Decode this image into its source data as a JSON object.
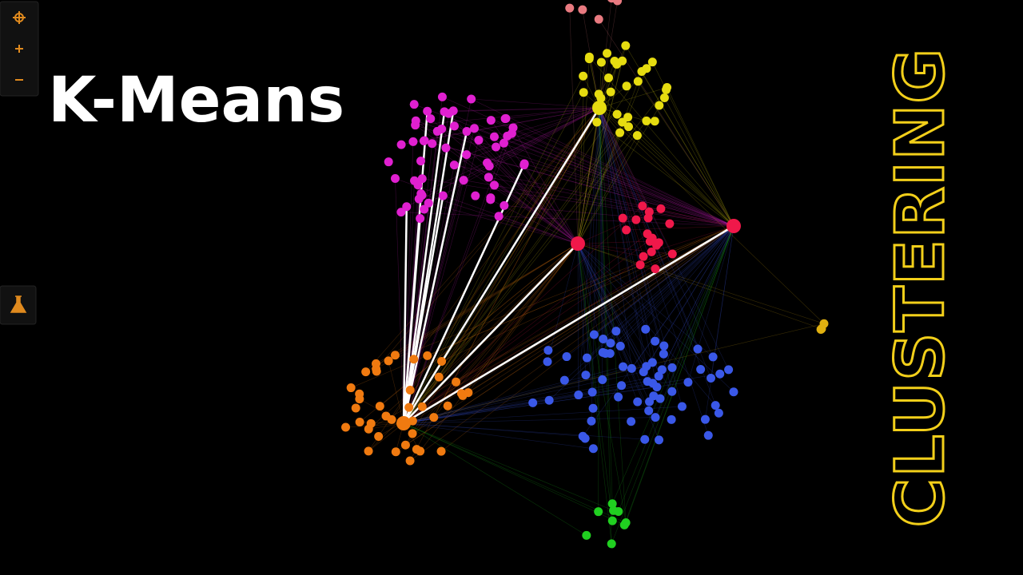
{
  "title": "K-Means",
  "side_title": "CLUSTERING"
}
